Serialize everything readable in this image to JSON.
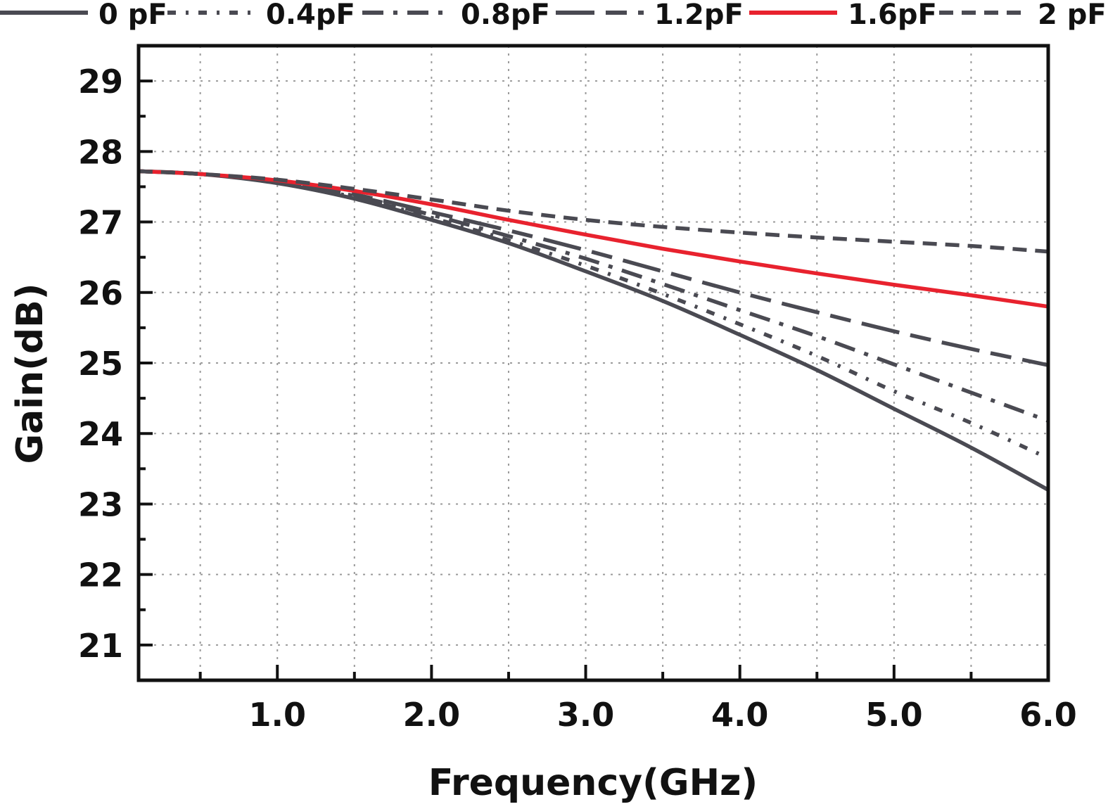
{
  "chart_data": {
    "type": "line",
    "title": "",
    "xlabel": "Frequency(GHz)",
    "ylabel": "Gain(dB)",
    "xlim": [
      0.1,
      6.0
    ],
    "ylim": [
      20.5,
      29.5
    ],
    "xticks": [
      1.0,
      2.0,
      3.0,
      4.0,
      5.0,
      6.0
    ],
    "xtick_labels": [
      "1.0",
      "2.0",
      "3.0",
      "4.0",
      "5.0",
      "6.0"
    ],
    "yticks": [
      21,
      22,
      23,
      24,
      25,
      26,
      27,
      28,
      29
    ],
    "ytick_labels": [
      "21",
      "22",
      "23",
      "24",
      "25",
      "26",
      "27",
      "28",
      "29"
    ],
    "grid": true,
    "legend_position": "top",
    "x": [
      0.1,
      0.5,
      1.0,
      1.5,
      2.0,
      2.5,
      3.0,
      3.5,
      4.0,
      4.5,
      5.0,
      5.5,
      6.0
    ],
    "series": [
      {
        "name": "0 pF",
        "color": "#4a4a52",
        "style": "solid",
        "values": [
          27.72,
          27.68,
          27.55,
          27.33,
          27.03,
          26.7,
          26.3,
          25.88,
          25.4,
          24.9,
          24.35,
          23.8,
          23.2
        ]
      },
      {
        "name": "0.4pF",
        "color": "#4a4a52",
        "style": "dot",
        "values": [
          27.72,
          27.68,
          27.56,
          27.35,
          27.06,
          26.74,
          26.38,
          25.98,
          25.55,
          25.1,
          24.6,
          24.15,
          23.65
        ]
      },
      {
        "name": "0.8pF",
        "color": "#4a4a52",
        "style": "dashdot",
        "values": [
          27.72,
          27.68,
          27.57,
          27.37,
          27.1,
          26.8,
          26.48,
          26.12,
          25.75,
          25.38,
          24.98,
          24.58,
          24.18
        ]
      },
      {
        "name": "1.2pF",
        "color": "#4a4a52",
        "style": "dashdotdot",
        "values": [
          27.72,
          27.68,
          27.57,
          27.39,
          27.14,
          26.88,
          26.6,
          26.3,
          26.0,
          25.72,
          25.45,
          25.2,
          24.97
        ]
      },
      {
        "name": "1.6pF",
        "color": "#e8222e",
        "style": "solid",
        "values": [
          27.72,
          27.68,
          27.59,
          27.44,
          27.25,
          27.03,
          26.82,
          26.62,
          26.44,
          26.27,
          26.11,
          25.96,
          25.8
        ]
      },
      {
        "name": "2 pF",
        "color": "#4a4a52",
        "style": "dash",
        "values": [
          27.72,
          27.68,
          27.6,
          27.47,
          27.32,
          27.16,
          27.03,
          26.93,
          26.85,
          26.78,
          26.72,
          26.66,
          26.58
        ]
      }
    ]
  }
}
